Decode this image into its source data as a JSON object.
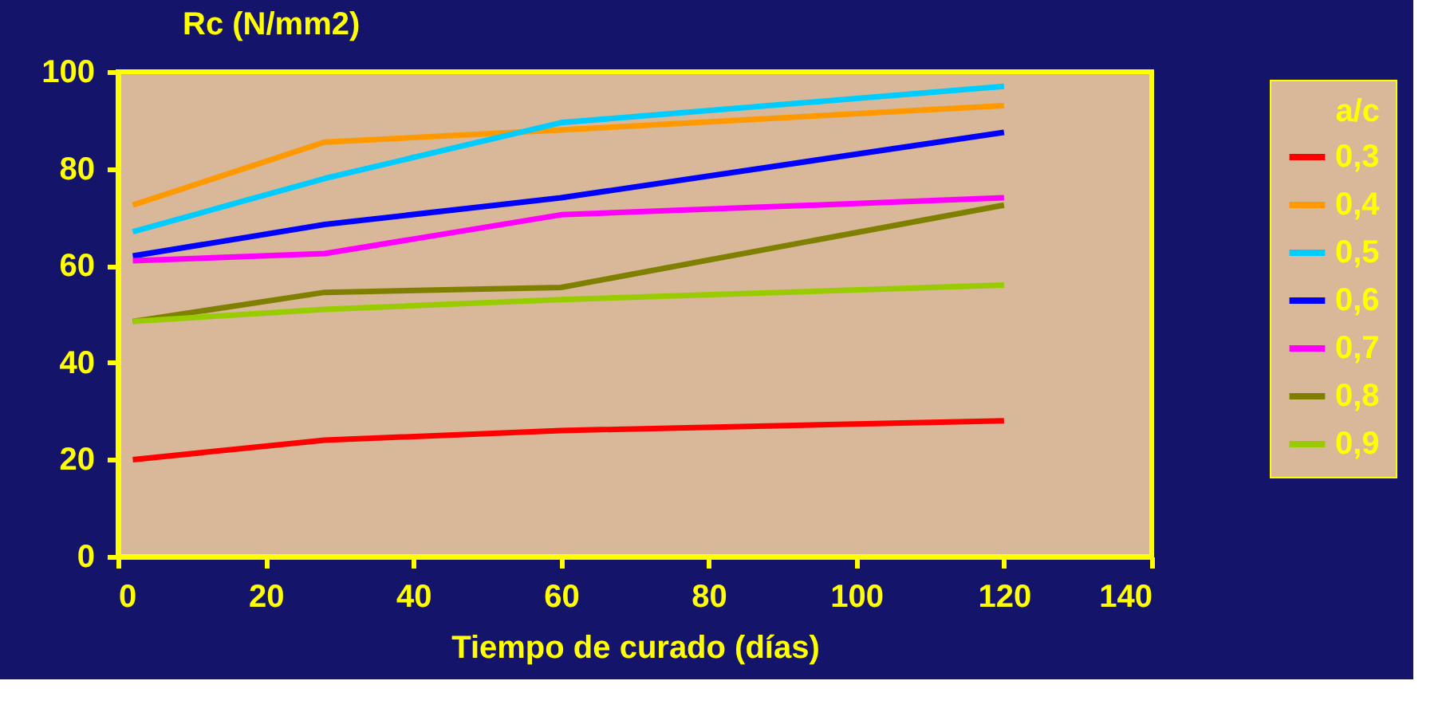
{
  "chart_data": {
    "type": "line",
    "xlabel": "Tiempo de curado (días)",
    "ylabel": "Rc (N/mm2)",
    "legend_title": "a/c",
    "x": [
      2,
      28,
      60,
      120
    ],
    "xlim": [
      0,
      140
    ],
    "xticks": [
      0,
      20,
      40,
      60,
      80,
      100,
      120,
      140
    ],
    "ylim": [
      0,
      100
    ],
    "yticks": [
      0,
      20,
      40,
      60,
      80,
      100
    ],
    "grid": false,
    "legend": "right",
    "marker": "none",
    "line_style": "solid",
    "series": [
      {
        "name": "0,3",
        "color": "#ff0000",
        "values": [
          20,
          24,
          26,
          28
        ]
      },
      {
        "name": "0,4",
        "color": "#ff9900",
        "values": [
          72.5,
          85.5,
          88,
          93
        ]
      },
      {
        "name": "0,5",
        "color": "#00ccff",
        "values": [
          67,
          78,
          89.5,
          97
        ]
      },
      {
        "name": "0,6",
        "color": "#0000ff",
        "values": [
          62,
          68.5,
          74,
          87.5
        ]
      },
      {
        "name": "0,7",
        "color": "#ff00ff",
        "values": [
          61,
          62.5,
          70.5,
          74
        ]
      },
      {
        "name": "0,8",
        "color": "#808000",
        "values": [
          48.5,
          54.5,
          55.5,
          72.5
        ]
      },
      {
        "name": "0,9",
        "color": "#99cc00",
        "values": [
          48.5,
          51,
          53,
          56
        ]
      }
    ]
  }
}
